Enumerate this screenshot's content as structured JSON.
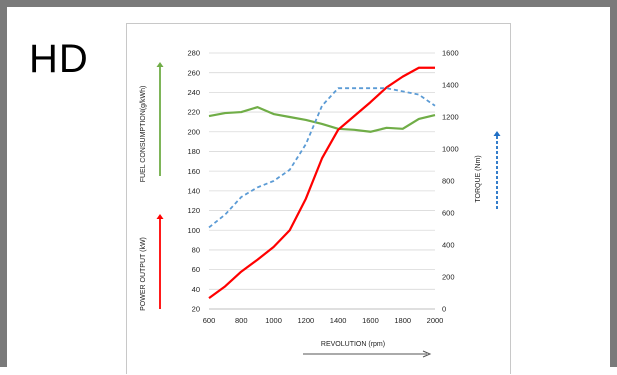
{
  "badge": {
    "text": "HD"
  },
  "chart_data": {
    "type": "line",
    "x": [
      600,
      700,
      800,
      900,
      1000,
      1100,
      1200,
      1300,
      1400,
      1500,
      1600,
      1700,
      1800,
      1900,
      2000
    ],
    "xlabel": "REVOLUTION (rpm)",
    "xlim": [
      600,
      2000
    ],
    "xticks": [
      600,
      800,
      1000,
      1200,
      1400,
      1600,
      1800,
      2000
    ],
    "left_axis": {
      "ylim": [
        20,
        280
      ],
      "ticks": [
        20,
        40,
        60,
        80,
        100,
        120,
        140,
        160,
        180,
        200,
        220,
        240,
        260,
        280
      ],
      "labels": [
        "FUEL CONSUMPTION(g/kWh)",
        "POWER OUTPUT (kW)"
      ]
    },
    "right_axis": {
      "ylim": [
        0,
        1600
      ],
      "ticks": [
        0,
        200,
        400,
        600,
        800,
        1000,
        1200,
        1400,
        1600
      ],
      "label": "TORQUE (Nm)"
    },
    "grid": true,
    "series": [
      {
        "axis": "left",
        "style": "solid",
        "color": "#70ad47",
        "values": [
          216,
          219,
          220,
          225,
          218,
          215,
          212,
          208,
          203,
          202,
          200,
          204,
          203,
          213,
          217
        ]
      },
      {
        "axis": "left",
        "style": "solid",
        "color": "#ff0000",
        "values": [
          31,
          43,
          58,
          70,
          83,
          100,
          132,
          173,
          202,
          216,
          230,
          245,
          256,
          265,
          265
        ]
      },
      {
        "axis": "right",
        "style": "dashed",
        "color": "#5b9bd5",
        "values": [
          510,
          590,
          700,
          760,
          800,
          870,
          1030,
          1270,
          1380,
          1380,
          1380,
          1380,
          1360,
          1340,
          1270
        ]
      }
    ],
    "arrow_colors": {
      "fuel": "#70ad47",
      "power": "#ff0000",
      "torque": "#1f6fc5",
      "revolution": "#555555"
    }
  }
}
